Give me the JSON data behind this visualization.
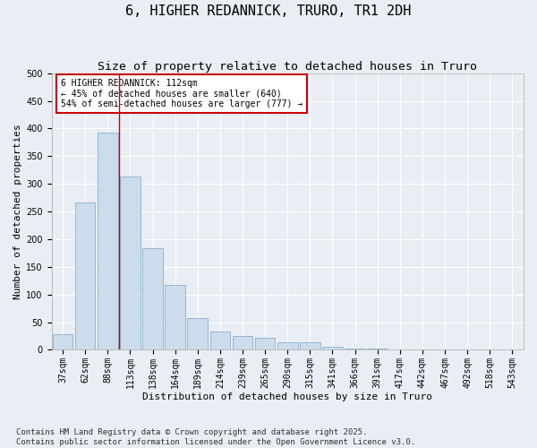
{
  "title": "6, HIGHER REDANNICK, TRURO, TR1 2DH",
  "subtitle": "Size of property relative to detached houses in Truro",
  "xlabel": "Distribution of detached houses by size in Truro",
  "ylabel": "Number of detached properties",
  "categories": [
    "37sqm",
    "62sqm",
    "88sqm",
    "113sqm",
    "138sqm",
    "164sqm",
    "189sqm",
    "214sqm",
    "239sqm",
    "265sqm",
    "290sqm",
    "315sqm",
    "341sqm",
    "366sqm",
    "391sqm",
    "417sqm",
    "442sqm",
    "467sqm",
    "492sqm",
    "518sqm",
    "543sqm"
  ],
  "values": [
    28,
    267,
    393,
    314,
    184,
    118,
    58,
    33,
    25,
    22,
    13,
    13,
    6,
    3,
    2,
    1,
    1,
    1,
    0,
    0,
    1
  ],
  "bar_color": "#ccdcec",
  "bar_edge_color": "#8ab0cc",
  "red_line_x": 2.5,
  "annotation_text": "6 HIGHER REDANNICK: 112sqm\n← 45% of detached houses are smaller (640)\n54% of semi-detached houses are larger (777) →",
  "annotation_box_color": "#ffffff",
  "annotation_box_edge": "#cc0000",
  "ylim": [
    0,
    500
  ],
  "yticks": [
    0,
    50,
    100,
    150,
    200,
    250,
    300,
    350,
    400,
    450,
    500
  ],
  "footer": "Contains HM Land Registry data © Crown copyright and database right 2025.\nContains public sector information licensed under the Open Government Licence v3.0.",
  "background_color": "#e8eef4",
  "grid_color": "#ffffff",
  "title_fontsize": 11,
  "subtitle_fontsize": 9.5,
  "axis_label_fontsize": 8,
  "tick_fontsize": 7,
  "annotation_fontsize": 7,
  "footer_fontsize": 6.5
}
